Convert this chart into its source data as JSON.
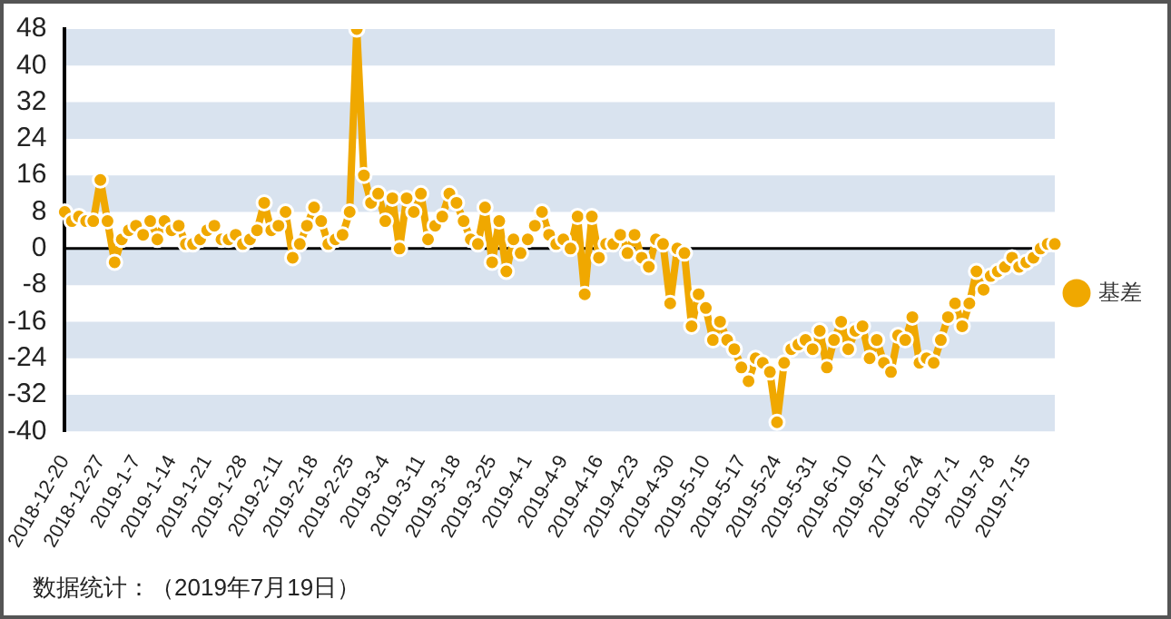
{
  "chart_data": {
    "type": "line",
    "categories": [
      "2018-12-20",
      null,
      null,
      null,
      null,
      "2018-12-27",
      null,
      null,
      null,
      null,
      "2019-1-7",
      null,
      null,
      null,
      null,
      "2019-1-14",
      null,
      null,
      null,
      null,
      "2019-1-21",
      null,
      null,
      null,
      null,
      "2019-1-28",
      null,
      null,
      null,
      null,
      "2019-2-11",
      null,
      null,
      null,
      null,
      "2019-2-18",
      null,
      null,
      null,
      null,
      "2019-2-25",
      null,
      null,
      null,
      null,
      "2019-3-4",
      null,
      null,
      null,
      null,
      "2019-3-11",
      null,
      null,
      null,
      null,
      "2019-3-18",
      null,
      null,
      null,
      null,
      "2019-3-25",
      null,
      null,
      null,
      null,
      "2019-4-1",
      null,
      null,
      null,
      null,
      "2019-4-9",
      null,
      null,
      null,
      null,
      "2019-4-16",
      null,
      null,
      null,
      null,
      "2019-4-23",
      null,
      null,
      null,
      null,
      "2019-4-30",
      null,
      null,
      null,
      null,
      "2019-5-10",
      null,
      null,
      null,
      null,
      "2019-5-17",
      null,
      null,
      null,
      null,
      "2019-5-24",
      null,
      null,
      null,
      null,
      "2019-5-31",
      null,
      null,
      null,
      null,
      "2019-6-10",
      null,
      null,
      null,
      null,
      "2019-6-17",
      null,
      null,
      null,
      null,
      "2019-6-24",
      null,
      null,
      null,
      null,
      "2019-7-1",
      null,
      null,
      null,
      null,
      "2019-7-8",
      null,
      null,
      null,
      null,
      "2019-7-15",
      null,
      null,
      null,
      null
    ],
    "series": [
      {
        "name": "基差",
        "color": "#f0a800",
        "values": [
          8,
          6,
          7,
          6,
          6,
          15,
          6,
          -3,
          2,
          4,
          5,
          3,
          6,
          2,
          6,
          4,
          5,
          1,
          1,
          2,
          4,
          5,
          2,
          2,
          3,
          1,
          2,
          4,
          10,
          4,
          5,
          8,
          -2,
          1,
          5,
          9,
          6,
          1,
          2,
          3,
          8,
          48,
          16,
          10,
          12,
          6,
          11,
          0,
          11,
          8,
          12,
          2,
          5,
          7,
          12,
          10,
          6,
          2,
          1,
          9,
          -3,
          6,
          -5,
          2,
          -1,
          2,
          5,
          8,
          3,
          1,
          2,
          0,
          7,
          -10,
          7,
          -2,
          1,
          1,
          3,
          -1,
          3,
          -2,
          -4,
          2,
          1,
          -12,
          0,
          -1,
          -17,
          -10,
          -13,
          -20,
          -16,
          -20,
          -22,
          -26,
          -29,
          -24,
          -25,
          -27,
          -38,
          -25,
          -22,
          -21,
          -20,
          -22,
          -18,
          -26,
          -20,
          -16,
          -22,
          -18,
          -17,
          -24,
          -20,
          -25,
          -27,
          -19,
          -20,
          -15,
          -25,
          -24,
          -25,
          -20,
          -15,
          -12,
          -17,
          -12,
          -5,
          -9,
          -6,
          -5,
          -4,
          -2,
          -4,
          -3,
          -2,
          0,
          1,
          1
        ]
      }
    ],
    "ylim": [
      -40,
      48
    ],
    "yticks": [
      -40,
      -32,
      -24,
      -16,
      -8,
      0,
      8,
      16,
      24,
      32,
      40,
      48
    ],
    "grid": "y",
    "legend": "right",
    "marker": "circle",
    "line_style": "solid",
    "annotations": [
      "数据统计：（2019年7月19日）"
    ]
  }
}
